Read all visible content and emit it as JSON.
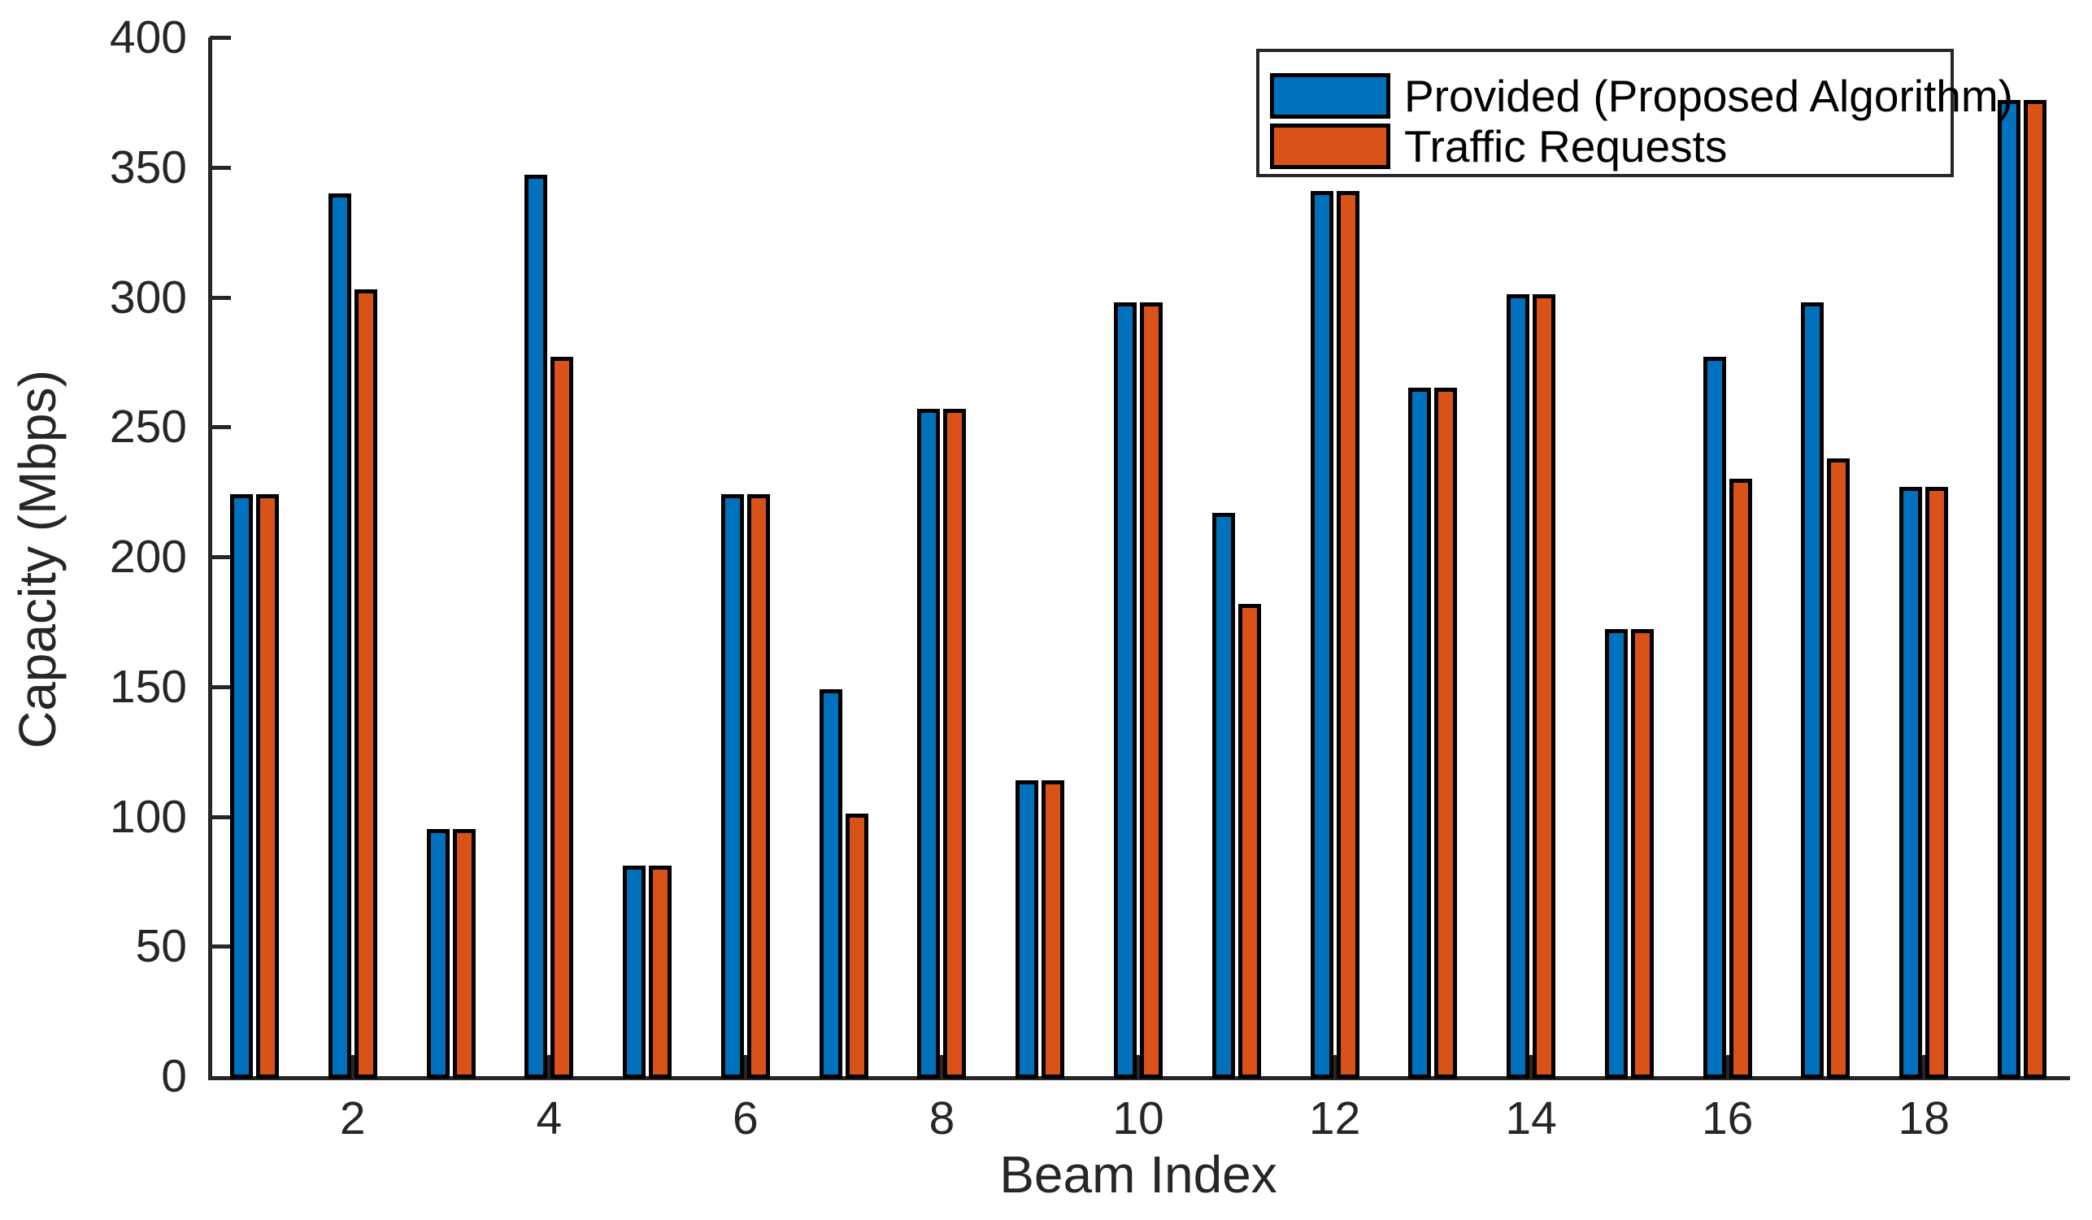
{
  "figure": {
    "background": "#ffffff",
    "axis_color": "#262626",
    "bar_edge_color": "#000000"
  },
  "chart_data": {
    "type": "bar",
    "title": "",
    "xlabel": "Beam Index",
    "ylabel": "Capacity (Mbps)",
    "categories": [
      1,
      2,
      3,
      4,
      5,
      6,
      7,
      8,
      9,
      10,
      11,
      12,
      13,
      14,
      15,
      16,
      17,
      18,
      19
    ],
    "series": [
      {
        "name": "Provided (Proposed Algorithm)",
        "color": "#0072BD",
        "values": [
          224,
          340,
          95,
          347,
          81,
          224,
          149,
          257,
          114,
          298,
          217,
          341,
          265,
          301,
          172,
          277,
          298,
          227,
          376
        ]
      },
      {
        "name": "Traffic Requests",
        "color": "#D95319",
        "values": [
          224,
          303,
          95,
          277,
          81,
          224,
          101,
          257,
          114,
          298,
          182,
          341,
          265,
          301,
          172,
          230,
          238,
          227,
          376
        ]
      }
    ],
    "ylim": [
      0,
      400
    ],
    "yticks": [
      0,
      50,
      100,
      150,
      200,
      250,
      300,
      350,
      400
    ],
    "xticks": [
      2,
      4,
      6,
      8,
      10,
      12,
      14,
      16,
      18
    ],
    "grid": false,
    "legend_position": "top-right",
    "legend_entries": [
      "Provided (Proposed Algorithm)",
      "Traffic Requests"
    ]
  }
}
